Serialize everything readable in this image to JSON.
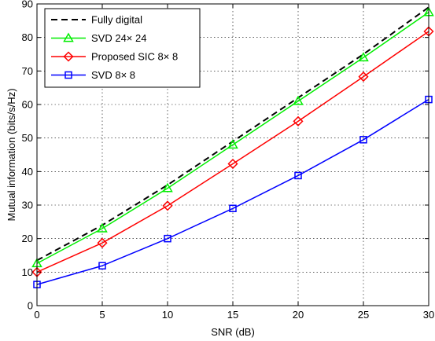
{
  "chart_data": {
    "type": "line",
    "xlabel": "SNR (dB)",
    "ylabel": "Mutual information  (bits/s/Hz)",
    "xlim": [
      0,
      30
    ],
    "ylim": [
      0,
      90
    ],
    "xticks": [
      0,
      5,
      10,
      15,
      20,
      25,
      30
    ],
    "yticks": [
      0,
      10,
      20,
      30,
      40,
      50,
      60,
      70,
      80,
      90
    ],
    "grid": true,
    "legend_position": "top-left",
    "x": [
      0,
      5,
      10,
      15,
      20,
      25,
      30
    ],
    "series": [
      {
        "name": "Fully digital",
        "values": [
          13.5,
          24,
          36,
          49,
          62,
          75,
          89
        ],
        "color": "#000000",
        "dash": true,
        "marker": "none"
      },
      {
        "name": "SVD 24× 24",
        "values": [
          12.6,
          23,
          35,
          48,
          61,
          74,
          87.5
        ],
        "color": "#00ee00",
        "dash": false,
        "marker": "triangle"
      },
      {
        "name": "Proposed SIC 8× 8",
        "values": [
          10,
          18.7,
          29.8,
          42.3,
          55,
          68.3,
          81.8
        ],
        "color": "#ff0000",
        "dash": false,
        "marker": "diamond"
      },
      {
        "name": "SVD 8× 8",
        "values": [
          6.3,
          11.9,
          20,
          29,
          38.8,
          49.5,
          61.5
        ],
        "color": "#0000ff",
        "dash": false,
        "marker": "square"
      }
    ]
  }
}
